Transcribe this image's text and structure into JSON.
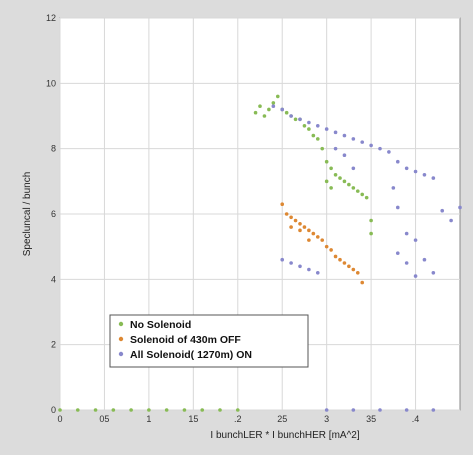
{
  "chart_data": {
    "type": "scatter",
    "xlabel": "I bunchLER * I bunchHER [mA^2]",
    "ylabel": "Specluncal / bunch",
    "xlim": [
      0,
      0.45
    ],
    "ylim": [
      0,
      12
    ],
    "x_ticks": [
      {
        "value": 0,
        "label": "0"
      },
      {
        "value": 0.05,
        "label": "05"
      },
      {
        "value": 0.1,
        "label": "1"
      },
      {
        "value": 0.15,
        "label": "15"
      },
      {
        "value": 0.2,
        "label": ".2"
      },
      {
        "value": 0.25,
        "label": "25"
      },
      {
        "value": 0.3,
        "label": "3"
      },
      {
        "value": 0.35,
        "label": "35"
      },
      {
        "value": 0.4,
        "label": ".4"
      }
    ],
    "y_ticks": [
      {
        "value": 0,
        "label": "0"
      },
      {
        "value": 2,
        "label": "2"
      },
      {
        "value": 4,
        "label": "4"
      },
      {
        "value": 6,
        "label": "6"
      },
      {
        "value": 8,
        "label": "8"
      },
      {
        "value": 10,
        "label": "10"
      },
      {
        "value": 12,
        "label": "12"
      }
    ],
    "grid": true,
    "legend_position": "bottom-left",
    "series": [
      {
        "name": "No Solenoid",
        "color": "#88bb55",
        "points": [
          [
            0.22,
            9.1
          ],
          [
            0.225,
            9.3
          ],
          [
            0.23,
            9.0
          ],
          [
            0.235,
            9.2
          ],
          [
            0.24,
            9.4
          ],
          [
            0.245,
            9.6
          ],
          [
            0.25,
            9.2
          ],
          [
            0.255,
            9.1
          ],
          [
            0.26,
            9.0
          ],
          [
            0.265,
            8.9
          ],
          [
            0.27,
            8.9
          ],
          [
            0.275,
            8.7
          ],
          [
            0.28,
            8.6
          ],
          [
            0.285,
            8.4
          ],
          [
            0.29,
            8.3
          ],
          [
            0.295,
            8.0
          ],
          [
            0.3,
            7.6
          ],
          [
            0.305,
            7.4
          ],
          [
            0.31,
            7.2
          ],
          [
            0.315,
            7.1
          ],
          [
            0.32,
            7.0
          ],
          [
            0.325,
            6.9
          ],
          [
            0.33,
            6.8
          ],
          [
            0.335,
            6.7
          ],
          [
            0.34,
            6.6
          ],
          [
            0.345,
            6.5
          ],
          [
            0.3,
            7.0
          ],
          [
            0.305,
            6.8
          ],
          [
            0.35,
            5.8
          ],
          [
            0.35,
            5.4
          ],
          [
            0.0,
            0.0
          ],
          [
            0.02,
            0.0
          ],
          [
            0.04,
            0.0
          ],
          [
            0.06,
            0.0
          ],
          [
            0.08,
            0.0
          ],
          [
            0.1,
            0.0
          ],
          [
            0.12,
            0.0
          ],
          [
            0.14,
            0.0
          ],
          [
            0.16,
            0.0
          ],
          [
            0.18,
            0.0
          ],
          [
            0.2,
            0.0
          ]
        ]
      },
      {
        "name": "Solenoid of 430m OFF",
        "color": "#dd8833",
        "points": [
          [
            0.25,
            6.3
          ],
          [
            0.255,
            6.0
          ],
          [
            0.26,
            5.9
          ],
          [
            0.265,
            5.8
          ],
          [
            0.27,
            5.7
          ],
          [
            0.275,
            5.6
          ],
          [
            0.28,
            5.5
          ],
          [
            0.285,
            5.4
          ],
          [
            0.29,
            5.3
          ],
          [
            0.295,
            5.2
          ],
          [
            0.3,
            5.0
          ],
          [
            0.305,
            4.9
          ],
          [
            0.31,
            4.7
          ],
          [
            0.315,
            4.6
          ],
          [
            0.32,
            4.5
          ],
          [
            0.325,
            4.4
          ],
          [
            0.33,
            4.3
          ],
          [
            0.335,
            4.2
          ],
          [
            0.34,
            3.9
          ],
          [
            0.26,
            5.6
          ],
          [
            0.27,
            5.5
          ],
          [
            0.28,
            5.2
          ]
        ]
      },
      {
        "name": "All Solenoid( 1270m) ON",
        "color": "#8888cc",
        "points": [
          [
            0.24,
            9.3
          ],
          [
            0.25,
            9.2
          ],
          [
            0.26,
            9.0
          ],
          [
            0.27,
            8.9
          ],
          [
            0.28,
            8.8
          ],
          [
            0.29,
            8.7
          ],
          [
            0.3,
            8.6
          ],
          [
            0.31,
            8.5
          ],
          [
            0.32,
            8.4
          ],
          [
            0.33,
            8.3
          ],
          [
            0.34,
            8.2
          ],
          [
            0.35,
            8.1
          ],
          [
            0.36,
            8.0
          ],
          [
            0.37,
            7.9
          ],
          [
            0.38,
            7.6
          ],
          [
            0.39,
            7.4
          ],
          [
            0.4,
            7.3
          ],
          [
            0.41,
            7.2
          ],
          [
            0.42,
            7.1
          ],
          [
            0.31,
            8.0
          ],
          [
            0.32,
            7.8
          ],
          [
            0.33,
            7.4
          ],
          [
            0.375,
            6.8
          ],
          [
            0.38,
            6.2
          ],
          [
            0.39,
            5.4
          ],
          [
            0.4,
            5.2
          ],
          [
            0.41,
            4.6
          ],
          [
            0.42,
            4.2
          ],
          [
            0.43,
            6.1
          ],
          [
            0.44,
            5.8
          ],
          [
            0.45,
            6.2
          ],
          [
            0.38,
            4.8
          ],
          [
            0.39,
            4.5
          ],
          [
            0.4,
            4.1
          ],
          [
            0.25,
            4.6
          ],
          [
            0.26,
            4.5
          ],
          [
            0.27,
            4.4
          ],
          [
            0.28,
            4.3
          ],
          [
            0.29,
            4.2
          ],
          [
            0.3,
            0.0
          ],
          [
            0.33,
            0.0
          ],
          [
            0.36,
            0.0
          ],
          [
            0.39,
            0.0
          ],
          [
            0.42,
            0.0
          ]
        ]
      }
    ]
  }
}
